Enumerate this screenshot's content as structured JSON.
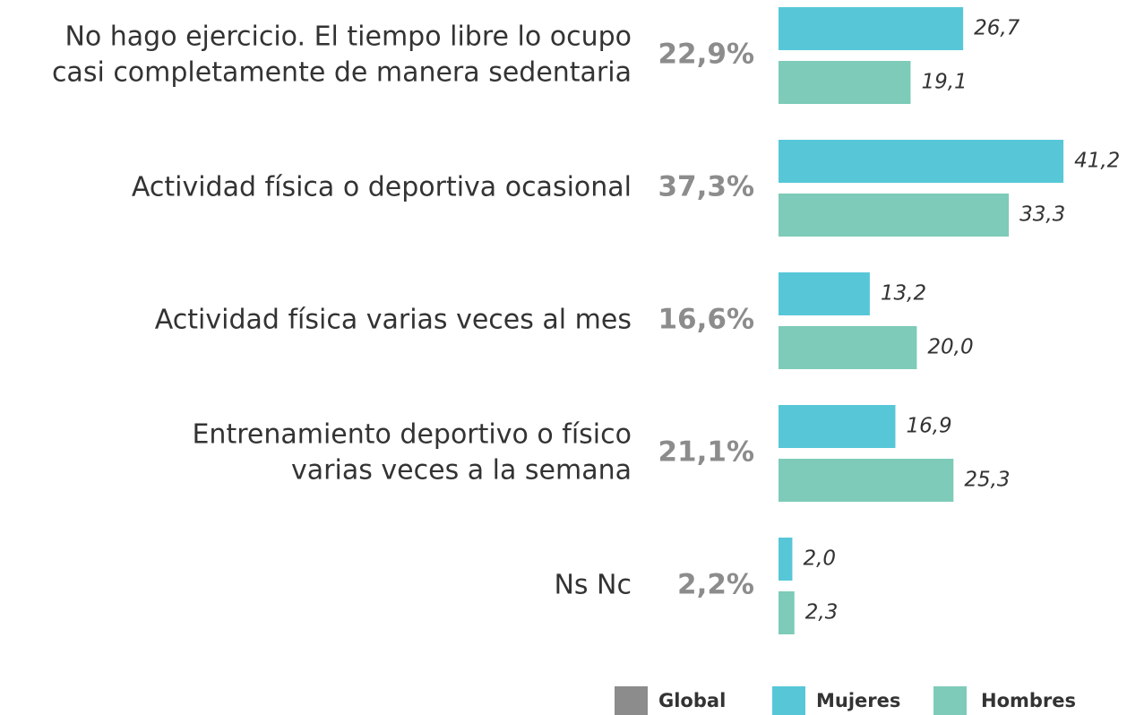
{
  "chart_data": {
    "type": "bar",
    "orientation": "horizontal",
    "categories": [
      [
        "No hago ejercicio. El tiempo libre lo ocupo",
        "casi completamente de manera sedentaria"
      ],
      [
        "Actividad física o deportiva ocasional"
      ],
      [
        "Actividad física varias veces al mes"
      ],
      [
        "Entrenamiento deportivo o físico",
        "varias veces a la semana"
      ],
      [
        "Ns Nc"
      ]
    ],
    "series": [
      {
        "name": "Global",
        "color": "#8c8c8c",
        "values": [
          22.9,
          37.3,
          16.6,
          21.1,
          2.2
        ],
        "value_labels": [
          "22,9%",
          "37,3%",
          "16,6%",
          "21,1%",
          "2,2%"
        ]
      },
      {
        "name": "Mujeres",
        "color": "#57c7d8",
        "values": [
          26.7,
          41.2,
          13.2,
          16.9,
          2.0
        ],
        "value_labels": [
          "26,7",
          "41,2",
          "13,2",
          "16,9",
          "2,0"
        ]
      },
      {
        "name": "Hombres",
        "color": "#7dcbb8",
        "values": [
          19.1,
          33.3,
          20.0,
          25.3,
          2.3
        ],
        "value_labels": [
          "19,1",
          "33,3",
          "20,0",
          "25,3",
          "2,3"
        ]
      }
    ],
    "xlim": [
      0,
      50
    ]
  }
}
